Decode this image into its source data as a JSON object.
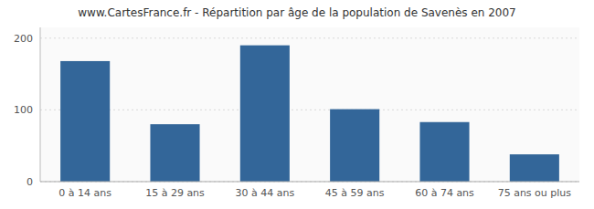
{
  "chart_data": {
    "type": "bar",
    "title": "www.CartesFrance.fr - Répartition par âge de la population de Savenès en 2007",
    "categories": [
      "0 à 14 ans",
      "15 à 29 ans",
      "30 à 44 ans",
      "45 à 59 ans",
      "60 à 74 ans",
      "75 ans ou plus"
    ],
    "values": [
      168,
      80,
      190,
      101,
      83,
      38
    ],
    "color": "#336699",
    "ylim": [
      0,
      215
    ],
    "yticks": [
      0,
      100,
      200
    ],
    "grid": true
  }
}
